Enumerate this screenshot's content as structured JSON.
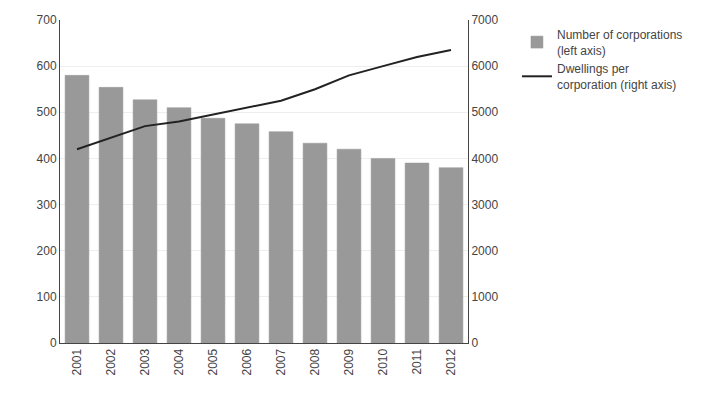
{
  "chart_data": {
    "type": "bar",
    "categories": [
      "2001",
      "2002",
      "2003",
      "2004",
      "2005",
      "2006",
      "2007",
      "2008",
      "2009",
      "2010",
      "2011",
      "2012"
    ],
    "series": [
      {
        "name": "Number of corporations\n(left axis)",
        "type": "bar",
        "color": "#999999",
        "values": [
          580,
          554,
          527,
          510,
          487,
          475,
          458,
          433,
          420,
          400,
          390,
          380
        ]
      },
      {
        "name": "Dwellings per\ncorporation (right axis)",
        "type": "line",
        "color": "#222222",
        "axis": "y2",
        "values": [
          4200,
          4450,
          4700,
          4800,
          4950,
          5100,
          5250,
          5500,
          5800,
          6000,
          6200,
          6350
        ]
      }
    ],
    "ylim": [
      0,
      700
    ],
    "yticks": [
      0,
      100,
      200,
      300,
      400,
      500,
      600,
      700
    ],
    "y2lim": [
      0,
      7000
    ],
    "y2ticks": [
      0,
      1000,
      2000,
      3000,
      4000,
      5000,
      6000,
      7000
    ],
    "grid": true,
    "legend": "right"
  }
}
